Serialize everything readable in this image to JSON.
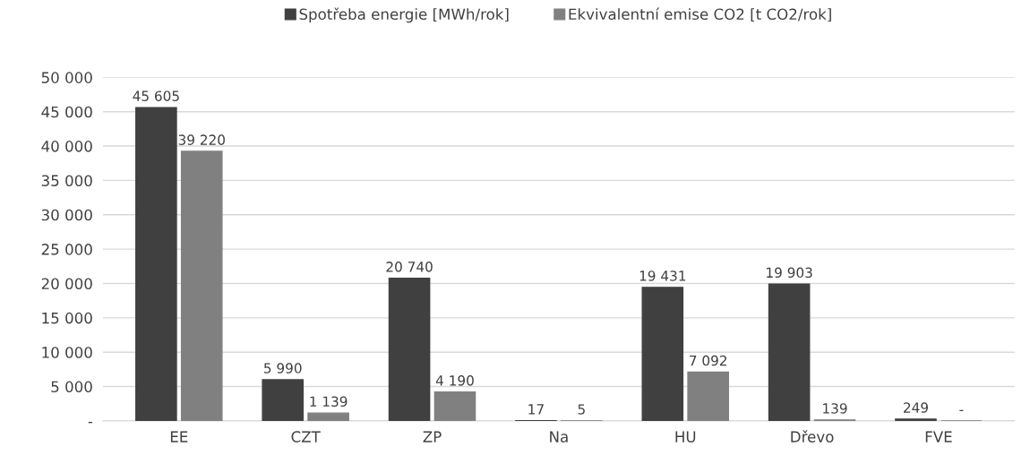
{
  "chart_data": {
    "type": "bar",
    "categories": [
      "EE",
      "CZT",
      "ZP",
      "Na",
      "HU",
      "Dřevo",
      "FVE"
    ],
    "series": [
      {
        "name": "Spotřeba energie [MWh/rok]",
        "color": "#404040",
        "values": [
          45605,
          5990,
          20740,
          17,
          19431,
          19903,
          249
        ],
        "value_labels": [
          "45 605",
          "5 990",
          "20 740",
          "17",
          "19 431",
          "19 903",
          "249"
        ]
      },
      {
        "name": "Ekvivalentní emise CO2 [t CO2/rok]",
        "color": "#808080",
        "values": [
          39220,
          1139,
          4190,
          5,
          7092,
          139,
          0
        ],
        "value_labels": [
          "39 220",
          "1 139",
          "4 190",
          "5",
          "7 092",
          "139",
          "-"
        ]
      }
    ],
    "ylim": [
      0,
      50000
    ],
    "yticks": [
      {
        "value": 0,
        "label": "-"
      },
      {
        "value": 5000,
        "label": "5 000"
      },
      {
        "value": 10000,
        "label": "10 000"
      },
      {
        "value": 15000,
        "label": "15 000"
      },
      {
        "value": 20000,
        "label": "20 000"
      },
      {
        "value": 25000,
        "label": "25 000"
      },
      {
        "value": 30000,
        "label": "30 000"
      },
      {
        "value": 35000,
        "label": "35 000"
      },
      {
        "value": 40000,
        "label": "40 000"
      },
      {
        "value": 45000,
        "label": "45 000"
      },
      {
        "value": 50000,
        "label": "50 000"
      }
    ],
    "grid": "y",
    "legend": "top"
  }
}
